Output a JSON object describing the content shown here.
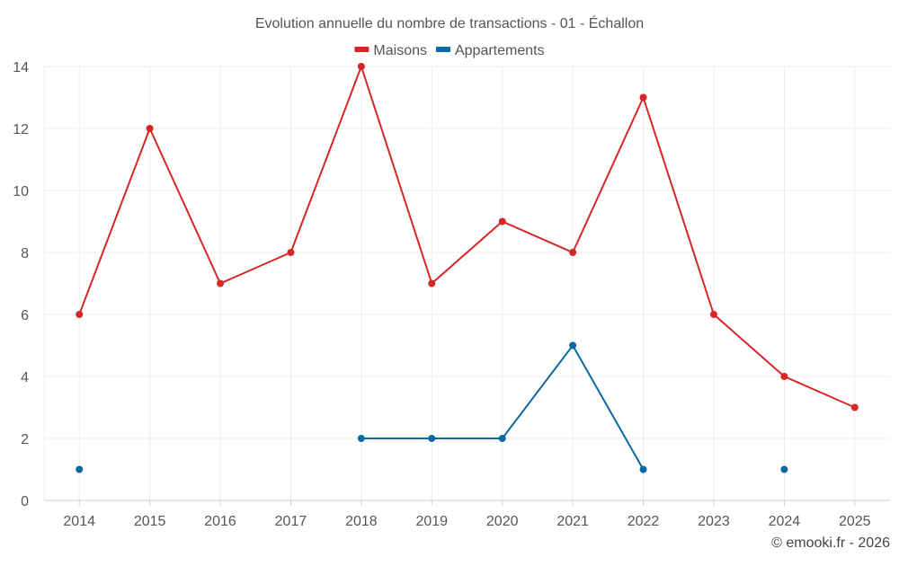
{
  "chart_data": {
    "type": "line",
    "title": "Evolution annuelle du nombre de transactions - 01 - Échallon",
    "x": [
      "2014",
      "2015",
      "2016",
      "2017",
      "2018",
      "2019",
      "2020",
      "2021",
      "2022",
      "2023",
      "2024",
      "2025"
    ],
    "ylim": [
      0,
      14
    ],
    "yticks": [
      0,
      2,
      4,
      6,
      8,
      10,
      12,
      14
    ],
    "grid": true,
    "legend_position": "top-center",
    "series": [
      {
        "name": "Maisons",
        "color": "#d62728",
        "values": [
          6,
          12,
          7,
          8,
          14,
          7,
          9,
          8,
          13,
          6,
          4,
          3
        ]
      },
      {
        "name": "Appartements",
        "color": "#0a6aa1",
        "values": [
          1,
          null,
          null,
          null,
          2,
          2,
          2,
          5,
          1,
          null,
          1,
          null
        ]
      }
    ]
  },
  "credit": "© emooki.fr - 2026"
}
